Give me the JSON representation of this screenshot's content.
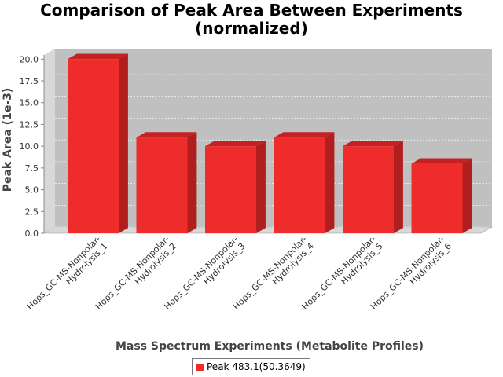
{
  "chart_data": {
    "type": "bar",
    "title_line1": "Comparison of Peak Area Between Experiments",
    "title_line2": "(normalized)",
    "xlabel": "Mass Spectrum Experiments (Metabolite Profiles)",
    "ylabel": "Peak Area (1e-3)",
    "categories": [
      [
        "Hops_GC-MS-Nonpolar-",
        "Hydrolysis_1"
      ],
      [
        "Hops_GC-MS-Nonpolar-",
        "Hydrolysis_2"
      ],
      [
        "Hops_GC-MS-Nonpolar-",
        "Hydrolysis_3"
      ],
      [
        "Hops_GC-MS-Nonpolar-",
        "Hydrolysis_4"
      ],
      [
        "Hops_GC-MS-Nonpolar-",
        "Hydrolysis_5"
      ],
      [
        "Hops_GC-MS-Nonpolar-",
        "Hydrolysis_6"
      ]
    ],
    "series": [
      {
        "name": "Peak 483.1(50.3649)",
        "values": [
          20.0,
          11.0,
          10.0,
          11.0,
          10.0,
          8.0
        ]
      }
    ],
    "ylim": [
      0,
      21.2
    ],
    "yticks": [
      "0.0",
      "2.5",
      "5.0",
      "7.5",
      "10.0",
      "12.5",
      "15.0",
      "17.5",
      "20.0"
    ],
    "ytick_values": [
      0,
      2.5,
      5,
      7.5,
      10,
      12.5,
      15,
      17.5,
      20
    ],
    "grid": true,
    "legend_position": "bottom",
    "colors": {
      "bar": "#ee2c2c",
      "bar_top": "#c42222",
      "bar_side": "#b01e1e",
      "plot_bg": "#c0c0c0",
      "plot_wall": "#d8d8d8"
    }
  }
}
